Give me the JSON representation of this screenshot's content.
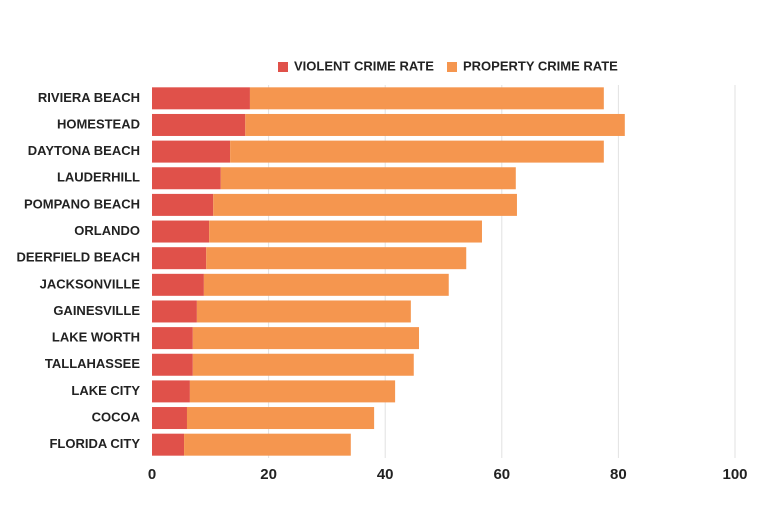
{
  "chart_data": {
    "type": "stacked-bar-horizontal",
    "categories": [
      "RIVIERA BEACH",
      "HOMESTEAD",
      "DAYTONA BEACH",
      "LAUDERHILL",
      "POMPANO BEACH",
      "ORLANDO",
      "DEERFIELD BEACH",
      "JACKSONVILLE",
      "GAINESVILLE",
      "LAKE WORTH",
      "TALLAHASSEE",
      "LAKE CITY",
      "COCOA",
      "FLORIDA CITY"
    ],
    "series": [
      {
        "name": "VIOLENT CRIME RATE",
        "color": "#e0514a",
        "values": [
          16.8,
          16.0,
          13.4,
          11.8,
          10.5,
          9.8,
          9.3,
          8.9,
          7.7,
          7.0,
          7.0,
          6.5,
          6.0,
          5.5
        ]
      },
      {
        "name": "PROPERTY CRIME RATE",
        "color": "#f5964f",
        "values": [
          60.7,
          65.1,
          64.1,
          50.6,
          52.1,
          46.8,
          44.6,
          42.0,
          36.7,
          38.8,
          37.9,
          35.2,
          32.1,
          28.6
        ]
      }
    ],
    "xlim": [
      0,
      100
    ],
    "xticks": [
      0,
      20,
      40,
      60,
      80,
      100
    ],
    "grid": true,
    "legend": "top"
  }
}
